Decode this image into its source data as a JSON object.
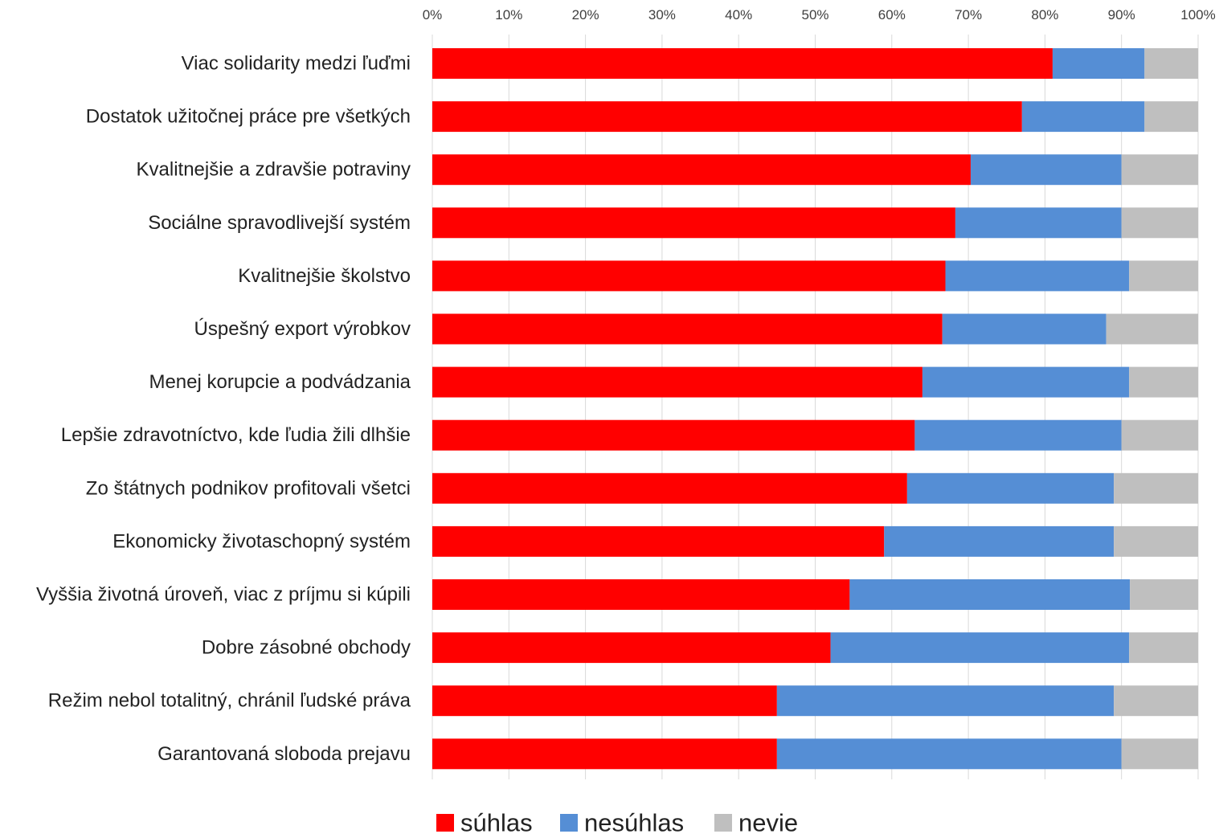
{
  "chart_data": {
    "type": "bar",
    "orientation": "horizontal",
    "stacked": "percent",
    "categories": [
      "Viac solidarity medzi ľuďmi",
      "Dostatok užitočnej práce pre všetkých",
      "Kvalitnejšie a zdravšie potraviny",
      "Sociálne spravodlivejší systém",
      "Kvalitnejšie školstvo",
      "Úspešný export výrobkov",
      "Menej korupcie a podvádzania",
      "Lepšie zdravotníctvo, kde ľudia žili dlhšie",
      "Zo štátnych podnikov profitovali všetci",
      "Ekonomicky životaschopný systém",
      "Vyššia životná úroveň, viac z príjmu si kúpili",
      "Dobre zásobné obchody",
      "Režim nebol totalitný, chránil ľudské práva",
      "Garantovaná sloboda prejavu"
    ],
    "series": [
      {
        "name": "súhlas",
        "color": "#ff0000",
        "values": [
          81,
          77,
          70.3,
          68.3,
          67,
          66.6,
          64,
          63,
          62,
          59,
          54.5,
          52,
          45,
          45
        ]
      },
      {
        "name": "nesúhlas",
        "color": "#558ed5",
        "values": [
          12,
          16,
          19.7,
          21.7,
          24,
          21.4,
          27,
          27,
          27,
          30,
          36.6,
          39,
          44,
          45
        ]
      },
      {
        "name": "nevie",
        "color": "#bfbfbf",
        "values": [
          7,
          7,
          10,
          10,
          9,
          12,
          9,
          10,
          11,
          11,
          8.9,
          9,
          11,
          10
        ]
      }
    ],
    "x_ticks": [
      "0%",
      "10%",
      "20%",
      "30%",
      "40%",
      "50%",
      "60%",
      "70%",
      "80%",
      "90%",
      "100%"
    ],
    "xlim": [
      0,
      100
    ],
    "x_axis_position": "top",
    "grid": true,
    "legend_position": "bottom",
    "title": "",
    "xlabel": "",
    "ylabel": ""
  }
}
